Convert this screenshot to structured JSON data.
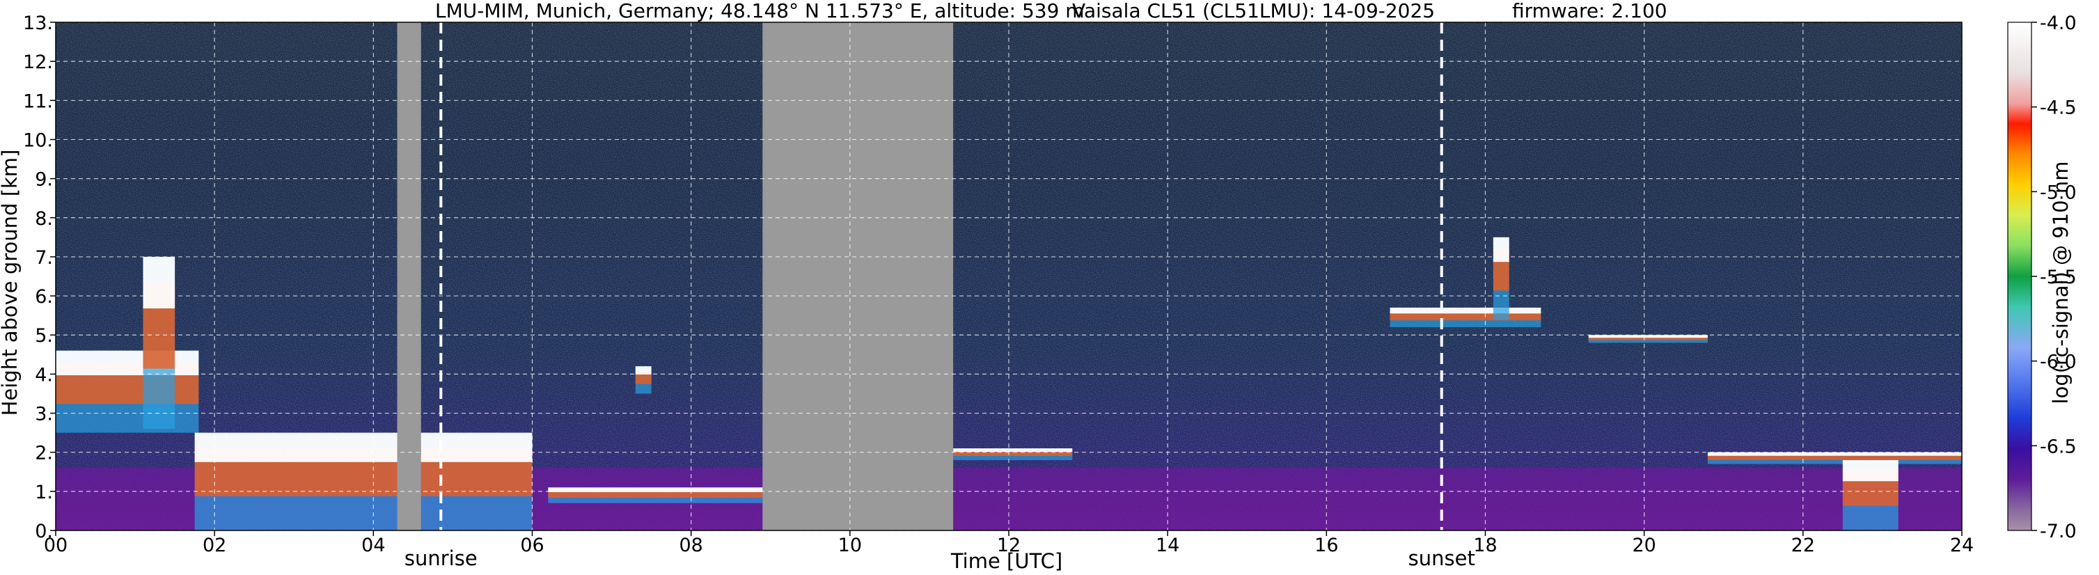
{
  "chart_data": {
    "type": "heatmap",
    "title_left": "LMU-MIM, Munich, Germany; 48.148° N 11.573° E, altitude: 539 m",
    "title_mid": "Vaisala CL51 (CL51LMU): 14-09-2025",
    "title_right": "firmware: 2.100",
    "xlabel": "Time [UTC]",
    "ylabel": "Height above ground [km]",
    "xlim": [
      0,
      24
    ],
    "ylim": [
      0,
      13
    ],
    "x_ticks": [
      "00",
      "02",
      "04",
      "06",
      "08",
      "10",
      "12",
      "14",
      "16",
      "18",
      "20",
      "22",
      "24"
    ],
    "y_ticks": [
      "0.",
      "1.",
      "2.",
      "3.",
      "4.",
      "5.",
      "6.",
      "7.",
      "8.",
      "9.",
      "10.",
      "11.",
      "12.",
      "13."
    ],
    "grid": true,
    "colorbar": {
      "label": "log(rc-signal) @ 910 nm",
      "range": [
        -7.0,
        -4.0
      ],
      "ticks": [
        "-4.0",
        "-4.5",
        "-5.0",
        "-5.5",
        "-6.0",
        "-6.5",
        "-7.0"
      ]
    },
    "events": [
      {
        "name": "sunrise",
        "time_h": 4.85
      },
      {
        "name": "sunset",
        "time_h": 17.45
      }
    ],
    "no_data_intervals": [
      [
        8.9,
        11.3
      ],
      [
        4.3,
        4.6
      ]
    ],
    "cloud_layers": [
      {
        "start_h": 0.0,
        "end_h": 1.8,
        "base_km": 2.5,
        "top_km": 4.6
      },
      {
        "start_h": 1.1,
        "end_h": 1.5,
        "base_km": 2.6,
        "top_km": 7.0
      },
      {
        "start_h": 1.75,
        "end_h": 6.0,
        "base_km": 0.0,
        "top_km": 2.5
      },
      {
        "start_h": 6.2,
        "end_h": 8.9,
        "base_km": 0.7,
        "top_km": 1.1
      },
      {
        "start_h": 7.3,
        "end_h": 7.5,
        "base_km": 3.5,
        "top_km": 4.2
      },
      {
        "start_h": 11.3,
        "end_h": 12.8,
        "base_km": 1.8,
        "top_km": 2.1
      },
      {
        "start_h": 16.8,
        "end_h": 18.7,
        "base_km": 5.2,
        "top_km": 5.7
      },
      {
        "start_h": 18.1,
        "end_h": 18.3,
        "base_km": 5.4,
        "top_km": 7.5
      },
      {
        "start_h": 19.3,
        "end_h": 20.8,
        "base_km": 4.8,
        "top_km": 5.0
      },
      {
        "start_h": 20.8,
        "end_h": 24.0,
        "base_km": 1.7,
        "top_km": 2.0
      },
      {
        "start_h": 22.5,
        "end_h": 23.2,
        "base_km": 0.0,
        "top_km": 1.8
      }
    ],
    "colors": {
      "background_signal": "#1a2a4a",
      "boundary_layer": "#6a1b9a",
      "no_data": "#9a9a9a",
      "cloud": "#ffffff",
      "grid": "#ffffff"
    }
  }
}
